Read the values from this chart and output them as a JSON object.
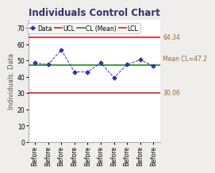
{
  "title": "Individuals Control Chart",
  "ylabel": "Individuals: Data",
  "x_labels": [
    "Before",
    "Before",
    "Before",
    "Before",
    "Before",
    "Before",
    "Before",
    "Before",
    "Before",
    "Before"
  ],
  "data_y": [
    48.5,
    47.5,
    56.5,
    43.0,
    43.0,
    48.5,
    39.5,
    47.5,
    50.5,
    46.5
  ],
  "ucl": 64.34,
  "cl": 47.2,
  "lcl": 30.06,
  "ucl_color": "#cc2222",
  "cl_color": "#228822",
  "lcl_color": "#cc2222",
  "data_color": "#3333aa",
  "ylim": [
    0,
    75
  ],
  "yticks": [
    0,
    10,
    20,
    30,
    40,
    50,
    60,
    70
  ],
  "title_fontsize": 8.5,
  "label_fontsize": 6,
  "tick_fontsize": 5.5,
  "annotation_fontsize": 5.5,
  "legend_fontsize": 5.5,
  "bg_color": "#f0eeec",
  "plot_bg_color": "#ffffff",
  "annotation_color": "#996633"
}
